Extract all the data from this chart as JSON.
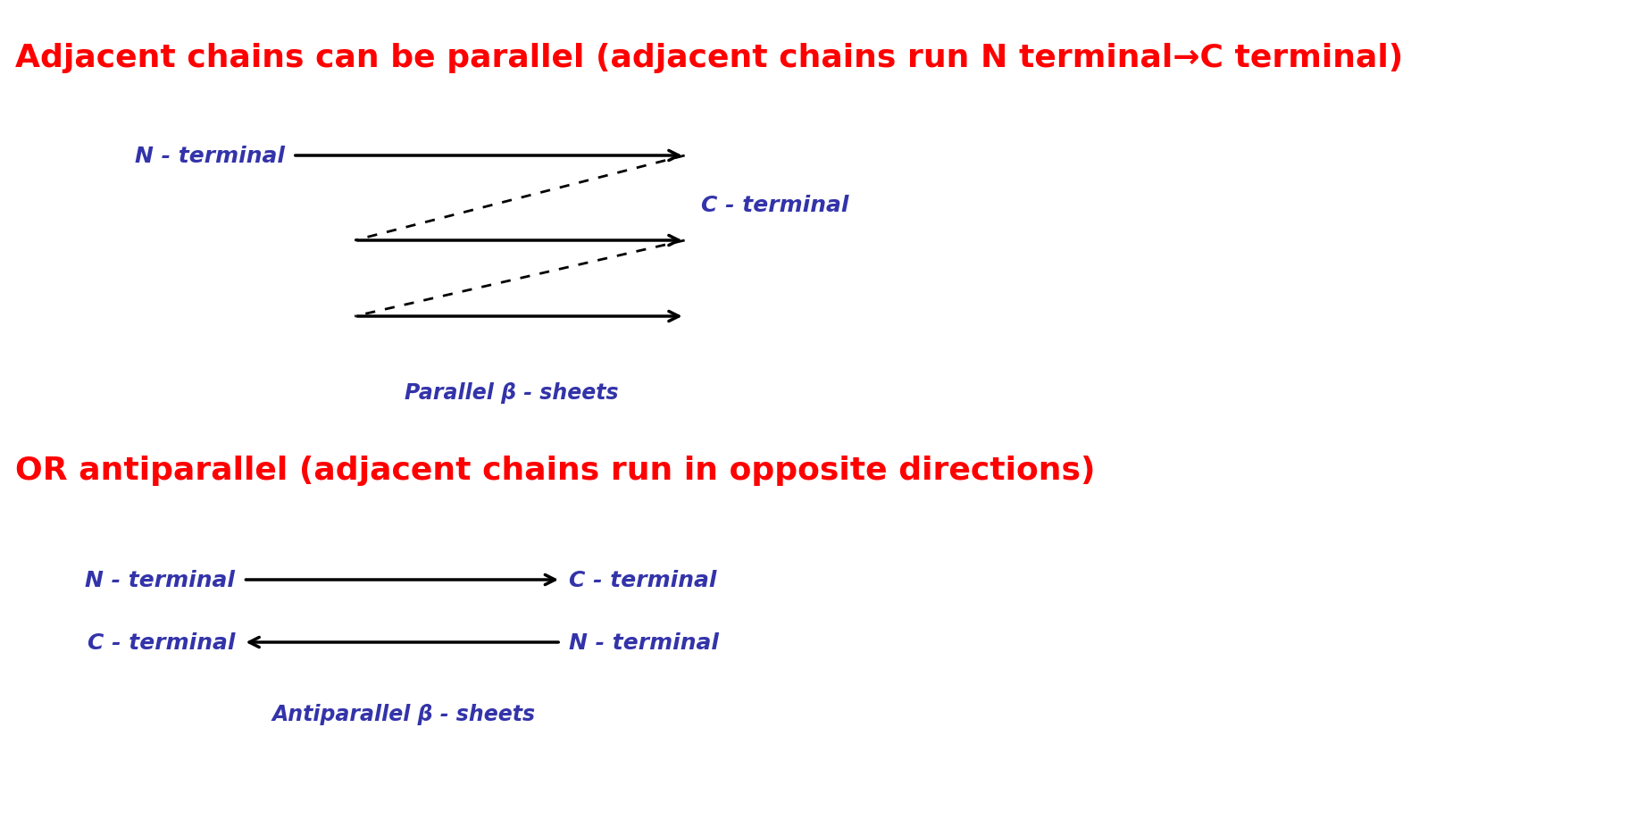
{
  "title1": "Adjacent chains can be parallel (adjacent chains run N terminal→C terminal)",
  "title2": "OR antiparallel (adjacent chains run in opposite directions)",
  "title_color": "#ff0000",
  "label_color": "#3333aa",
  "arrow_color": "#000000",
  "bg_color": "#ffffff",
  "parallel_label": "Parallel β - sheets",
  "antiparallel_label": "Antiparallel β - sheets",
  "n_terminal": "N - terminal",
  "c_terminal": "C - terminal",
  "title_fontsize": 26,
  "label_fontsize": 18,
  "annotation_fontsize": 17
}
